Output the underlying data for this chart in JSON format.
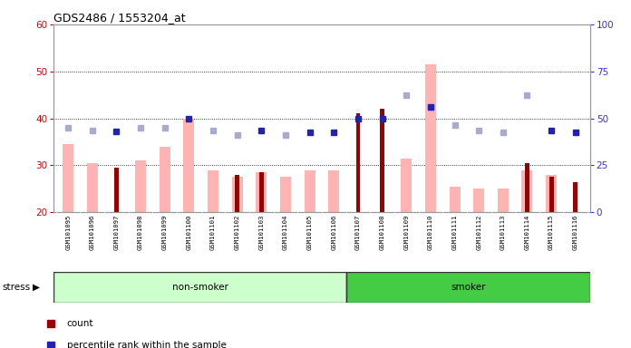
{
  "title": "GDS2486 / 1553204_at",
  "samples": [
    "GSM101095",
    "GSM101096",
    "GSM101097",
    "GSM101098",
    "GSM101099",
    "GSM101100",
    "GSM101101",
    "GSM101102",
    "GSM101103",
    "GSM101104",
    "GSM101105",
    "GSM101106",
    "GSM101107",
    "GSM101108",
    "GSM101109",
    "GSM101110",
    "GSM101111",
    "GSM101112",
    "GSM101113",
    "GSM101114",
    "GSM101115",
    "GSM101116"
  ],
  "count_values": [
    null,
    null,
    29.5,
    null,
    null,
    null,
    null,
    28.0,
    28.5,
    null,
    null,
    null,
    41.0,
    42.0,
    null,
    null,
    null,
    null,
    null,
    30.5,
    27.5,
    26.5
  ],
  "rank_values": [
    38.0,
    37.5,
    37.2,
    38.0,
    38.0,
    40.0,
    37.5,
    36.5,
    37.5,
    36.5,
    37.0,
    37.0,
    40.0,
    40.0,
    null,
    42.5,
    null,
    null,
    null,
    null,
    37.5,
    37.0
  ],
  "value_absent": [
    34.5,
    30.5,
    null,
    31.0,
    34.0,
    40.0,
    29.0,
    27.5,
    28.5,
    27.5,
    29.0,
    29.0,
    null,
    null,
    31.5,
    51.5,
    25.5,
    25.0,
    25.0,
    29.0,
    28.0,
    null
  ],
  "rank_absent": [
    38.0,
    37.5,
    null,
    38.0,
    38.0,
    null,
    37.5,
    36.5,
    null,
    36.5,
    null,
    null,
    null,
    null,
    45.0,
    42.5,
    38.5,
    37.5,
    37.0,
    45.0,
    null,
    null
  ],
  "rank_solid": [
    null,
    null,
    37.2,
    null,
    null,
    40.0,
    null,
    null,
    37.5,
    null,
    37.0,
    37.0,
    40.0,
    40.0,
    null,
    42.5,
    null,
    null,
    null,
    null,
    37.5,
    37.0
  ],
  "non_smoker_count": 12,
  "smoker_count": 10,
  "left_axis_color": "#cc0000",
  "right_axis_color": "#3333cc",
  "left_ylim": [
    20,
    60
  ],
  "right_ylim": [
    0,
    100
  ],
  "left_yticks": [
    20,
    30,
    40,
    50,
    60
  ],
  "right_yticks": [
    0,
    25,
    50,
    75,
    100
  ],
  "bar_color_count": "#990000",
  "bar_color_rank": "#2222aa",
  "bar_color_value_absent": "#ffb3b3",
  "bar_color_rank_absent": "#aaaacc",
  "bg_nonsmoker": "#ccffcc",
  "bg_smoker": "#44cc44",
  "label_bg": "#cccccc"
}
